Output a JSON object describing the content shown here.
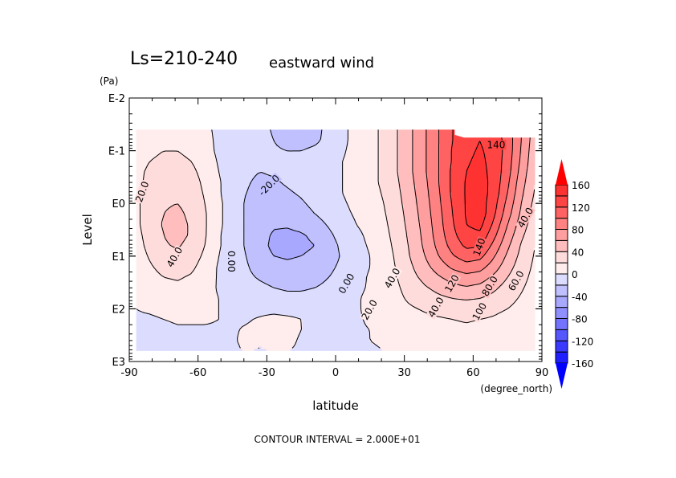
{
  "chart_data": {
    "type": "heatmap",
    "title_left": "Ls=210-240",
    "title_right": "eastward wind",
    "xlabel": "latitude",
    "x_units": "(degree_north)",
    "ylabel": "Level",
    "y_units": "(Pa)",
    "footer": "CONTOUR INTERVAL = 2.000E+01",
    "xlim": [
      -90,
      90
    ],
    "x_ticks": [
      -90,
      -60,
      -30,
      0,
      30,
      60,
      90
    ],
    "x_tick_labels": [
      "-90",
      "-60",
      "-30",
      "0",
      "30",
      "60",
      "90"
    ],
    "y_scale": "log",
    "ylim_log10": [
      -2,
      3
    ],
    "y_ticks_log10": [
      -2,
      -1,
      0,
      1,
      2,
      3
    ],
    "y_tick_labels": [
      "E-2",
      "E-1",
      "E0",
      "E1",
      "E2",
      "E3"
    ],
    "contour_interval": 20,
    "contour_labels": [
      "20.0",
      "40.0",
      "-20.0",
      "0.00",
      "0.00",
      "20.0",
      "40.0",
      "40.0",
      "60.0",
      "80.0",
      "100",
      "120",
      "140",
      "140",
      "40.0"
    ],
    "colorbar": {
      "levels": [
        -160,
        -140,
        -120,
        -100,
        -80,
        -60,
        -40,
        -20,
        0,
        20,
        40,
        60,
        80,
        100,
        120,
        140,
        160
      ],
      "tick_values": [
        160,
        120,
        80,
        40,
        0,
        -40,
        -80,
        -120,
        -160
      ],
      "tick_labels": [
        "160",
        "120",
        "80",
        "40",
        "0",
        "-40",
        "-80",
        "-120",
        "-160"
      ],
      "colors": [
        "#0000ff",
        "#1f1fff",
        "#3939ff",
        "#5656ff",
        "#7373ff",
        "#8f8fff",
        "#a8a8ff",
        "#c0c0ff",
        "#dcdcff",
        "#ffecec",
        "#ffdcdc",
        "#ffbdbd",
        "#ff9e9e",
        "#ff8282",
        "#ff6262",
        "#ff4444",
        "#ff3232",
        "#ff0000"
      ],
      "extend": "both"
    },
    "lat": [
      -87,
      -81,
      -75,
      -69,
      -63,
      -57,
      -51,
      -45,
      -39,
      -33,
      -27,
      -21,
      -15,
      -9,
      -3,
      3,
      9,
      15,
      21,
      27,
      33,
      39,
      45,
      51,
      57,
      63,
      69,
      75,
      81,
      87
    ],
    "log10_pressure": [
      -1.4,
      -1.2,
      -1.0,
      -0.8,
      -0.6,
      -0.4,
      -0.2,
      0.0,
      0.2,
      0.4,
      0.6,
      0.8,
      1.0,
      1.2,
      1.4,
      1.6,
      1.8,
      2.0,
      2.2,
      2.4,
      2.6,
      2.8
    ],
    "u": [
      [
        6,
        8,
        10,
        10,
        8,
        4,
        -4,
        -8,
        -10,
        -14,
        -22,
        -28,
        -30,
        -26,
        -14,
        -4,
        6,
        14,
        24,
        40,
        58,
        78,
        100,
        120,
        132,
        136,
        130,
        110,
        80,
        50
      ],
      [
        8,
        12,
        14,
        14,
        12,
        6,
        -4,
        -10,
        -12,
        -14,
        -20,
        -26,
        -28,
        -24,
        -14,
        -4,
        6,
        14,
        24,
        40,
        58,
        78,
        100,
        120,
        134,
        140,
        132,
        112,
        80,
        48
      ],
      [
        10,
        16,
        20,
        20,
        16,
        8,
        -4,
        -10,
        -12,
        -14,
        -18,
        -20,
        -20,
        -16,
        -10,
        -2,
        6,
        14,
        24,
        40,
        58,
        78,
        100,
        122,
        136,
        142,
        134,
        112,
        78,
        46
      ],
      [
        12,
        20,
        24,
        24,
        20,
        12,
        -2,
        -10,
        -14,
        -16,
        -16,
        -16,
        -14,
        -10,
        -6,
        0,
        6,
        14,
        24,
        40,
        58,
        78,
        100,
        122,
        138,
        144,
        134,
        110,
        76,
        44
      ],
      [
        14,
        24,
        28,
        28,
        24,
        14,
        0,
        -10,
        -16,
        -20,
        -18,
        -16,
        -14,
        -10,
        -6,
        0,
        6,
        14,
        24,
        40,
        58,
        78,
        100,
        124,
        140,
        146,
        134,
        108,
        72,
        42
      ],
      [
        14,
        26,
        32,
        32,
        28,
        16,
        2,
        -10,
        -18,
        -24,
        -22,
        -18,
        -14,
        -10,
        -6,
        0,
        6,
        14,
        24,
        38,
        56,
        76,
        100,
        124,
        142,
        148,
        134,
        104,
        68,
        40
      ],
      [
        16,
        28,
        36,
        36,
        30,
        18,
        2,
        -10,
        -20,
        -26,
        -26,
        -22,
        -18,
        -12,
        -6,
        0,
        6,
        12,
        22,
        36,
        54,
        74,
        98,
        124,
        142,
        150,
        132,
        100,
        64,
        38
      ],
      [
        16,
        30,
        38,
        40,
        34,
        20,
        4,
        -10,
        -22,
        -28,
        -28,
        -26,
        -22,
        -16,
        -8,
        -2,
        4,
        10,
        20,
        34,
        52,
        72,
        96,
        122,
        142,
        150,
        128,
        94,
        60,
        34
      ],
      [
        16,
        30,
        40,
        44,
        36,
        22,
        4,
        -10,
        -22,
        -30,
        -32,
        -30,
        -26,
        -20,
        -12,
        -4,
        2,
        8,
        18,
        32,
        50,
        70,
        94,
        120,
        142,
        152,
        124,
        88,
        56,
        30
      ],
      [
        16,
        30,
        42,
        46,
        38,
        22,
        4,
        -10,
        -22,
        -32,
        -38,
        -38,
        -34,
        -28,
        -18,
        -8,
        0,
        6,
        16,
        30,
        48,
        68,
        92,
        118,
        140,
        146,
        116,
        80,
        50,
        28
      ],
      [
        14,
        28,
        40,
        46,
        38,
        22,
        2,
        -10,
        -22,
        -34,
        -42,
        -44,
        -42,
        -36,
        -24,
        -12,
        -4,
        4,
        14,
        28,
        46,
        66,
        90,
        114,
        134,
        136,
        106,
        72,
        44,
        24
      ],
      [
        12,
        26,
        38,
        42,
        34,
        20,
        2,
        -10,
        -22,
        -34,
        -44,
        -46,
        -44,
        -40,
        -28,
        -16,
        -6,
        2,
        12,
        26,
        44,
        64,
        86,
        108,
        124,
        122,
        94,
        64,
        38,
        20
      ],
      [
        10,
        22,
        32,
        36,
        30,
        16,
        0,
        -10,
        -20,
        -32,
        -40,
        -42,
        -40,
        -36,
        -28,
        -18,
        -8,
        0,
        10,
        24,
        42,
        60,
        80,
        98,
        110,
        106,
        82,
        56,
        34,
        18
      ],
      [
        8,
        18,
        26,
        28,
        24,
        12,
        -2,
        -10,
        -18,
        -28,
        -34,
        -36,
        -34,
        -30,
        -24,
        -16,
        -8,
        0,
        10,
        22,
        38,
        54,
        70,
        84,
        92,
        88,
        70,
        48,
        30,
        16
      ],
      [
        6,
        14,
        20,
        22,
        18,
        10,
        -2,
        -10,
        -16,
        -22,
        -26,
        -28,
        -28,
        -26,
        -20,
        -14,
        -6,
        2,
        10,
        20,
        34,
        46,
        58,
        68,
        74,
        70,
        56,
        40,
        26,
        14
      ],
      [
        4,
        10,
        14,
        16,
        14,
        8,
        -2,
        -8,
        -12,
        -16,
        -20,
        -22,
        -22,
        -20,
        -16,
        -10,
        -4,
        2,
        10,
        18,
        28,
        38,
        46,
        54,
        58,
        54,
        44,
        32,
        22,
        12
      ],
      [
        2,
        6,
        10,
        10,
        10,
        6,
        0,
        -6,
        -8,
        -12,
        -14,
        -16,
        -16,
        -14,
        -12,
        -8,
        -2,
        4,
        10,
        16,
        24,
        30,
        36,
        40,
        42,
        40,
        34,
        26,
        18,
        10
      ],
      [
        0,
        2,
        4,
        6,
        6,
        4,
        0,
        -4,
        -6,
        -6,
        -6,
        -8,
        -8,
        -10,
        -10,
        -6,
        -2,
        4,
        8,
        14,
        18,
        22,
        26,
        28,
        30,
        28,
        24,
        20,
        14,
        8
      ],
      [
        -2,
        -2,
        0,
        2,
        2,
        2,
        0,
        -2,
        -2,
        2,
        6,
        4,
        0,
        -6,
        -8,
        -6,
        -2,
        2,
        6,
        10,
        14,
        16,
        18,
        20,
        22,
        20,
        18,
        14,
        10,
        6
      ],
      [
        -4,
        -4,
        -4,
        -2,
        -2,
        -2,
        -2,
        -2,
        2,
        6,
        10,
        6,
        0,
        -4,
        -6,
        -4,
        -2,
        0,
        4,
        6,
        10,
        12,
        12,
        14,
        16,
        14,
        12,
        10,
        8,
        4
      ],
      [
        -6,
        -6,
        -6,
        -6,
        -6,
        -4,
        -4,
        -2,
        4,
        4,
        8,
        4,
        -2,
        -4,
        -4,
        -4,
        -2,
        0,
        2,
        4,
        6,
        8,
        8,
        10,
        10,
        10,
        8,
        6,
        4,
        2
      ],
      [
        -8,
        -8,
        -8,
        -8,
        -8,
        -6,
        -6,
        -4,
        2,
        -2,
        2,
        0,
        -2,
        -4,
        -4,
        -4,
        -2,
        -2,
        0,
        2,
        2,
        4,
        4,
        6,
        6,
        6,
        4,
        4,
        2,
        2
      ]
    ]
  }
}
